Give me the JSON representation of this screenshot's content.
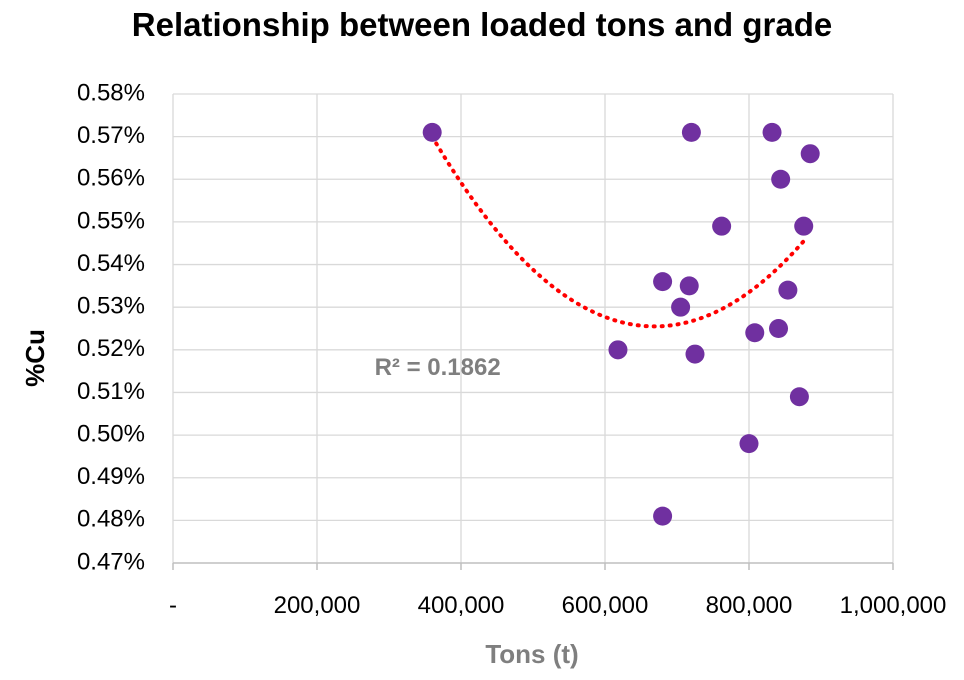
{
  "chart_data": {
    "type": "scatter",
    "title": "Relationship between loaded tons and grade",
    "xlabel": "Tons (t)",
    "ylabel": "%Cu",
    "xlim": [
      0,
      1000000
    ],
    "ylim": [
      0.0047,
      0.0058
    ],
    "x_ticks": [
      {
        "value": 0,
        "label": "-"
      },
      {
        "value": 200000,
        "label": "200,000"
      },
      {
        "value": 400000,
        "label": "400,000"
      },
      {
        "value": 600000,
        "label": "600,000"
      },
      {
        "value": 800000,
        "label": "800,000"
      },
      {
        "value": 1000000,
        "label": "1,000,000"
      }
    ],
    "y_ticks": [
      {
        "value": 0.0047,
        "label": "0.47%"
      },
      {
        "value": 0.0048,
        "label": "0.48%"
      },
      {
        "value": 0.0049,
        "label": "0.49%"
      },
      {
        "value": 0.005,
        "label": "0.50%"
      },
      {
        "value": 0.0051,
        "label": "0.51%"
      },
      {
        "value": 0.0052,
        "label": "0.52%"
      },
      {
        "value": 0.0053,
        "label": "0.53%"
      },
      {
        "value": 0.0054,
        "label": "0.54%"
      },
      {
        "value": 0.0055,
        "label": "0.55%"
      },
      {
        "value": 0.0056,
        "label": "0.56%"
      },
      {
        "value": 0.0057,
        "label": "0.57%"
      },
      {
        "value": 0.0058,
        "label": "0.58%"
      }
    ],
    "grid": true,
    "series": [
      {
        "color": "#7030a0",
        "points": [
          {
            "x": 360000,
            "y": 0.00571
          },
          {
            "x": 618000,
            "y": 0.0052
          },
          {
            "x": 680000,
            "y": 0.00536
          },
          {
            "x": 680000,
            "y": 0.00481
          },
          {
            "x": 705000,
            "y": 0.0053
          },
          {
            "x": 717000,
            "y": 0.00535
          },
          {
            "x": 720000,
            "y": 0.00571
          },
          {
            "x": 725000,
            "y": 0.00519
          },
          {
            "x": 762000,
            "y": 0.00549
          },
          {
            "x": 800000,
            "y": 0.00498
          },
          {
            "x": 808000,
            "y": 0.00524
          },
          {
            "x": 832000,
            "y": 0.00571
          },
          {
            "x": 841000,
            "y": 0.00525
          },
          {
            "x": 844000,
            "y": 0.0056
          },
          {
            "x": 854000,
            "y": 0.00534
          },
          {
            "x": 870000,
            "y": 0.00509
          },
          {
            "x": 876000,
            "y": 0.00549
          },
          {
            "x": 885000,
            "y": 0.00566
          }
        ]
      }
    ],
    "trendline": {
      "type": "polynomial-2",
      "style": "dotted",
      "color": "#ff0000",
      "x_range": [
        360000,
        876000
      ],
      "points": [
        {
          "x": 360000,
          "y": 0.0057
        },
        {
          "x": 672000,
          "y": 0.005255
        },
        {
          "x": 876000,
          "y": 0.005455
        }
      ]
    },
    "annotations": [
      {
        "text": "R² = 0.1862",
        "x": 430000,
        "y": 0.00516
      }
    ]
  }
}
